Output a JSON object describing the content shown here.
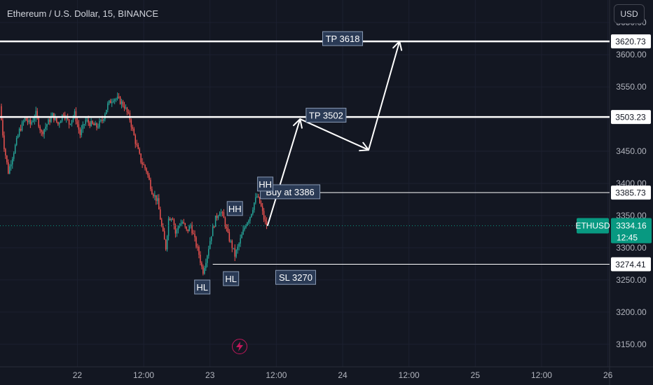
{
  "header": {
    "title": "Ethereum / U.S. Dollar, 15, BINANCE",
    "currency": "USD"
  },
  "colors": {
    "background": "#131722",
    "up": "#26a69a",
    "down": "#ef5350",
    "label_bg": "#2a3a55",
    "last_price": "#089981",
    "bolt": "#c2185b"
  },
  "chart_data": {
    "type": "candlestick",
    "symbol": "ETHUSD",
    "y_axis": {
      "ticks": [
        3650,
        3600,
        3550,
        3500,
        3450,
        3400,
        3350,
        3300,
        3250,
        3200,
        3150
      ],
      "tick_labels": [
        "3650.00",
        "3600.00",
        "3550.00",
        "3500.00",
        "3450.00",
        "3400.00",
        "3350.00",
        "3300.00",
        "3250.00",
        "3200.00",
        "3150.00"
      ],
      "range": [
        3115,
        3685
      ]
    },
    "x_axis": {
      "tick_labels": [
        "22",
        "12:00",
        "23",
        "12:00",
        "24",
        "12:00",
        "25",
        "12:00",
        "26"
      ],
      "tick_hours": [
        0,
        12,
        24,
        36,
        48,
        60,
        72,
        84,
        96
      ],
      "range_hours": [
        -14,
        96.3
      ]
    },
    "price_path": [
      [
        -14,
        3520
      ],
      [
        -13.3,
        3460
      ],
      [
        -12.5,
        3418
      ],
      [
        -11.5,
        3450
      ],
      [
        -10.5,
        3482
      ],
      [
        -9.5,
        3500
      ],
      [
        -8.5,
        3492
      ],
      [
        -7.5,
        3508
      ],
      [
        -6.5,
        3478
      ],
      [
        -5.5,
        3492
      ],
      [
        -4.5,
        3506
      ],
      [
        -3.5,
        3492
      ],
      [
        -2.5,
        3510
      ],
      [
        -1.5,
        3493
      ],
      [
        -0.5,
        3508
      ],
      [
        0.5,
        3476
      ],
      [
        1.5,
        3498
      ],
      [
        2.5,
        3492
      ],
      [
        3.5,
        3488
      ],
      [
        4.5,
        3498
      ],
      [
        5.5,
        3522
      ],
      [
        6.5,
        3533
      ],
      [
        7.5,
        3530
      ],
      [
        8.5,
        3520
      ],
      [
        9.5,
        3500
      ],
      [
        10.5,
        3465
      ],
      [
        11.5,
        3435
      ],
      [
        12.5,
        3420
      ],
      [
        13.5,
        3388
      ],
      [
        14.5,
        3372
      ],
      [
        15.3,
        3330
      ],
      [
        16,
        3300
      ],
      [
        16.5,
        3345
      ],
      [
        17.2,
        3350
      ],
      [
        17.8,
        3320
      ],
      [
        18.3,
        3335
      ],
      [
        19,
        3340
      ],
      [
        19.8,
        3325
      ],
      [
        20.5,
        3335
      ],
      [
        21.3,
        3310
      ],
      [
        22,
        3290
      ],
      [
        22.7,
        3262
      ],
      [
        23.5,
        3290
      ],
      [
        24.2,
        3320
      ],
      [
        25,
        3345
      ],
      [
        25.8,
        3358
      ],
      [
        26.4,
        3348
      ],
      [
        27.3,
        3318
      ],
      [
        28,
        3302
      ],
      [
        28.5,
        3288
      ],
      [
        29.1,
        3302
      ],
      [
        29.8,
        3320
      ],
      [
        30.5,
        3338
      ],
      [
        31.3,
        3350
      ],
      [
        32,
        3370
      ],
      [
        32.5,
        3380
      ],
      [
        33.2,
        3365
      ],
      [
        33.9,
        3340
      ],
      [
        34.4,
        3334
      ]
    ],
    "horizontal_levels": [
      {
        "price": 3620.73,
        "label": "3620.73",
        "style": "thick"
      },
      {
        "price": 3503.23,
        "label": "3503.23",
        "style": "thick"
      },
      {
        "price": 3385.73,
        "label": "3385.73",
        "style": "thin"
      },
      {
        "price": 3274.41,
        "label": "3274.41",
        "style": "thin"
      }
    ],
    "last_price": {
      "symbol": "ETHUSD",
      "price": "3334.16",
      "countdown": "12:45",
      "value": 3334.16
    },
    "projection_path": [
      [
        34.4,
        3334
      ],
      [
        40.3,
        3500
      ],
      [
        52.7,
        3452
      ],
      [
        58.3,
        3620.73
      ]
    ],
    "annotations": [
      {
        "text": "TP 3618",
        "x": 48,
        "y": 3625
      },
      {
        "text": "TP 3502",
        "x": 45,
        "y": 3506
      },
      {
        "text": "Buy at 3386",
        "x": 38.5,
        "y": 3387
      },
      {
        "text": "SL 3270",
        "x": 39.5,
        "y": 3254
      },
      {
        "text": "HH",
        "x": 34,
        "y": 3399
      },
      {
        "text": "HH",
        "x": 28.5,
        "y": 3361
      },
      {
        "text": "HL",
        "x": 22.6,
        "y": 3239
      },
      {
        "text": "HL",
        "x": 27.8,
        "y": 3252
      }
    ]
  }
}
